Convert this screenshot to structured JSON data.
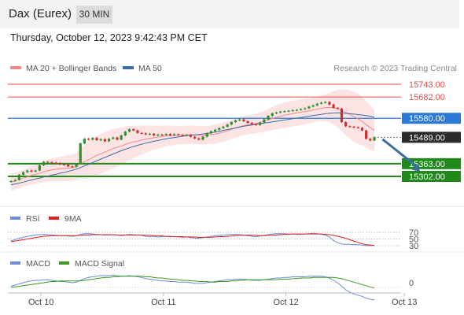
{
  "header": {
    "title": "Dax (Eurex)",
    "interval": "30 MIN",
    "timestamp": "Thursday, October 12, 2023 9:42:43 PM CET"
  },
  "colors": {
    "resistance": "#e8474a",
    "support": "#1f8a1a",
    "pivot": "#2a78d8",
    "price_tag": "#2b2b2b",
    "ma20": "#f08a8a",
    "bollinger_fill": "#fde4e4",
    "ma50": "#3a6ea5",
    "candle_up": "#2f8f2f",
    "candle_down": "#c83030",
    "arrow": "#3a6ea5",
    "rsi": "#6b8ad8",
    "rsi_ma": "#e02020",
    "macd": "#6b8ad8",
    "macd_signal": "#3c9a1c"
  },
  "chart_data": [
    {
      "type": "candlestick",
      "attribution": "Research © 2023 Trading Central",
      "legend": [
        {
          "label": "MA 20 + Bollinger Bands",
          "color": "#f08a8a"
        },
        {
          "label": "MA 50",
          "color": "#3a6ea5"
        }
      ],
      "x_ticks": [
        {
          "label": "Oct 10",
          "index": 6
        },
        {
          "label": "Oct 11",
          "index": 36
        },
        {
          "label": "Oct 12",
          "index": 66
        },
        {
          "label": "Oct 13",
          "index": 95
        }
      ],
      "price_lines": [
        {
          "label": "15743.00",
          "value": 15743,
          "kind": "resistance"
        },
        {
          "label": "15682.00",
          "value": 15682,
          "kind": "resistance"
        },
        {
          "label": "15580.00",
          "value": 15580,
          "kind": "pivot"
        },
        {
          "label": "15489.00",
          "value": 15489,
          "kind": "last"
        },
        {
          "label": "15363.00",
          "value": 15363,
          "kind": "support"
        },
        {
          "label": "15302.00",
          "value": 15302,
          "kind": "support"
        }
      ],
      "close": [
        15280,
        15285,
        15310,
        15322,
        15330,
        15325,
        15330,
        15355,
        15372,
        15370,
        15368,
        15365,
        15360,
        15358,
        15350,
        15348,
        15362,
        15460,
        15482,
        15478,
        15486,
        15475,
        15480,
        15470,
        15482,
        15488,
        15478,
        15498,
        15516,
        15528,
        15522,
        15510,
        15508,
        15503,
        15506,
        15498,
        15502,
        15500,
        15505,
        15499,
        15504,
        15500,
        15498,
        15500,
        15492,
        15484,
        15478,
        15492,
        15508,
        15518,
        15525,
        15533,
        15540,
        15550,
        15562,
        15570,
        15575,
        15566,
        15558,
        15552,
        15548,
        15560,
        15575,
        15592,
        15604,
        15608,
        15612,
        15614,
        15616,
        15619,
        15620,
        15624,
        15628,
        15636,
        15642,
        15650,
        15655,
        15658,
        15646,
        15630,
        15626,
        15562,
        15542,
        15540,
        15537,
        15535,
        15522,
        15482,
        15474,
        15489
      ],
      "ma20": [
        15275,
        15280,
        15286,
        15293,
        15300,
        15307,
        15312,
        15318,
        15324,
        15329,
        15333,
        15336,
        15338,
        15340,
        15342,
        15343,
        15350,
        15362,
        15372,
        15382,
        15392,
        15402,
        15410,
        15418,
        15427,
        15435,
        15441,
        15448,
        15455,
        15462,
        15467,
        15471,
        15476,
        15480,
        15484,
        15487,
        15490,
        15493,
        15496,
        15497,
        15498,
        15499,
        15500,
        15501,
        15502,
        15501,
        15499,
        15498,
        15500,
        15502,
        15505,
        15509,
        15514,
        15520,
        15527,
        15534,
        15540,
        15545,
        15549,
        15552,
        15555,
        15560,
        15566,
        15572,
        15579,
        15585,
        15590,
        15595,
        15599,
        15603,
        15606,
        15609,
        15612,
        15616,
        15620,
        15624,
        15628,
        15631,
        15632,
        15630,
        15627,
        15618,
        15608,
        15598,
        15588,
        15578,
        15566,
        15550,
        15535,
        15522
      ],
      "ma50": [
        15262,
        15266,
        15270,
        15275,
        15280,
        15285,
        15290,
        15294,
        15299,
        15303,
        15308,
        15312,
        15317,
        15321,
        15326,
        15331,
        15337,
        15344,
        15352,
        15360,
        15368,
        15377,
        15385,
        15393,
        15401,
        15409,
        15417,
        15425,
        15432,
        15439,
        15445,
        15451,
        15456,
        15461,
        15466,
        15470,
        15474,
        15478,
        15482,
        15485,
        15488,
        15491,
        15494,
        15497,
        15499,
        15501,
        15503,
        15505,
        15508,
        15511,
        15514,
        15518,
        15522,
        15526,
        15530,
        15534,
        15538,
        15542,
        15545,
        15548,
        15551,
        15554,
        15557,
        15560,
        15563,
        15566,
        15569,
        15572,
        15575,
        15578,
        15581,
        15584,
        15587,
        15590,
        15593,
        15596,
        15599,
        15602,
        15604,
        15605,
        15606,
        15605,
        15604,
        15602,
        15600,
        15598,
        15596,
        15593,
        15590,
        15586
      ],
      "bb_width": [
        40,
        40,
        40,
        40,
        42,
        44,
        46,
        48,
        50,
        52,
        54,
        56,
        58,
        60,
        62,
        62,
        64,
        70,
        80,
        90,
        92,
        94,
        96,
        96,
        96,
        94,
        92,
        88,
        86,
        82,
        78,
        74,
        70,
        66,
        62,
        58,
        55,
        52,
        50,
        48,
        46,
        44,
        44,
        44,
        44,
        44,
        44,
        44,
        44,
        44,
        46,
        46,
        46,
        46,
        46,
        46,
        46,
        46,
        46,
        46,
        46,
        48,
        50,
        52,
        56,
        58,
        60,
        62,
        62,
        62,
        62,
        62,
        62,
        60,
        60,
        60,
        62,
        64,
        70,
        80,
        90,
        100,
        110,
        115,
        120,
        120,
        115,
        110,
        105,
        100
      ],
      "arrow": {
        "from_index": 91,
        "from": 15480,
        "to_index": 96,
        "to": 15325
      },
      "rsi": {
        "legend": [
          {
            "label": "RSI",
            "color": "#6b8ad8"
          },
          {
            "label": "9MA",
            "color": "#e02020"
          }
        ],
        "levels": [
          {
            "label": "70",
            "value": 70
          },
          {
            "label": "50",
            "value": 50
          },
          {
            "label": "30",
            "value": 30
          }
        ],
        "values": [
          45,
          48,
          52,
          55,
          58,
          60,
          62,
          63,
          64,
          63,
          62,
          61,
          60,
          60,
          59,
          58,
          60,
          64,
          66,
          66,
          65,
          64,
          63,
          62,
          62,
          63,
          62,
          60,
          62,
          64,
          63,
          62,
          61,
          58,
          57,
          58,
          56,
          57,
          58,
          56,
          57,
          56,
          55,
          56,
          54,
          53,
          52,
          54,
          56,
          58,
          60,
          61,
          62,
          63,
          64,
          64,
          63,
          62,
          60,
          58,
          57,
          59,
          61,
          63,
          65,
          66,
          66,
          66,
          65,
          65,
          64,
          64,
          65,
          66,
          67,
          66,
          64,
          62,
          56,
          45,
          40,
          35,
          34,
          34,
          33,
          33,
          32,
          30,
          30,
          31
        ],
        "ma": [
          42,
          44,
          46,
          48,
          50,
          52,
          54,
          56,
          58,
          59,
          60,
          60,
          60,
          60,
          60,
          60,
          60,
          61,
          62,
          62,
          63,
          63,
          63,
          63,
          63,
          63,
          62,
          62,
          62,
          62,
          62,
          62,
          62,
          61,
          61,
          60,
          60,
          59,
          58,
          58,
          57,
          57,
          57,
          56,
          56,
          56,
          55,
          55,
          55,
          55,
          56,
          57,
          57,
          58,
          59,
          60,
          61,
          61,
          62,
          61,
          61,
          60,
          60,
          61,
          61,
          62,
          63,
          64,
          64,
          65,
          65,
          65,
          65,
          65,
          65,
          65,
          65,
          64,
          63,
          61,
          58,
          55,
          52,
          48,
          44,
          40,
          36,
          33,
          32,
          31
        ]
      },
      "macd": {
        "legend": [
          {
            "label": "MACD",
            "color": "#6b8ad8"
          },
          {
            "label": "MACD Signal",
            "color": "#3c9a1c"
          }
        ],
        "zero_label": "0",
        "values": [
          2,
          4,
          6,
          8,
          10,
          11,
          12,
          12,
          13,
          13,
          12,
          11,
          10,
          10,
          9,
          8,
          9,
          12,
          15,
          17,
          18,
          19,
          20,
          20,
          20,
          21,
          20,
          19,
          19,
          20,
          19,
          18,
          17,
          15,
          14,
          13,
          12,
          11,
          11,
          10,
          10,
          9,
          9,
          9,
          8,
          7,
          7,
          7,
          8,
          9,
          10,
          11,
          12,
          13,
          13,
          14,
          14,
          14,
          13,
          12,
          12,
          12,
          13,
          14,
          15,
          16,
          16,
          17,
          17,
          18,
          18,
          18,
          18,
          19,
          19,
          19,
          19,
          18,
          16,
          12,
          8,
          2,
          -4,
          -8,
          -11,
          -13,
          -15,
          -18,
          -20,
          -21
        ],
        "signal": [
          0,
          1,
          2,
          3,
          4,
          5,
          6,
          7,
          8,
          9,
          10,
          10,
          11,
          11,
          11,
          11,
          11,
          11,
          12,
          13,
          14,
          15,
          16,
          17,
          17,
          18,
          18,
          19,
          19,
          19,
          19,
          19,
          19,
          18,
          18,
          17,
          16,
          16,
          15,
          14,
          14,
          13,
          12,
          12,
          11,
          11,
          10,
          10,
          10,
          9,
          9,
          10,
          10,
          10,
          11,
          11,
          12,
          12,
          13,
          13,
          13,
          13,
          13,
          13,
          13,
          13,
          14,
          14,
          14,
          15,
          15,
          16,
          16,
          16,
          17,
          17,
          17,
          17,
          17,
          17,
          16,
          15,
          13,
          11,
          9,
          7,
          5,
          3,
          1,
          -1
        ]
      }
    }
  ]
}
